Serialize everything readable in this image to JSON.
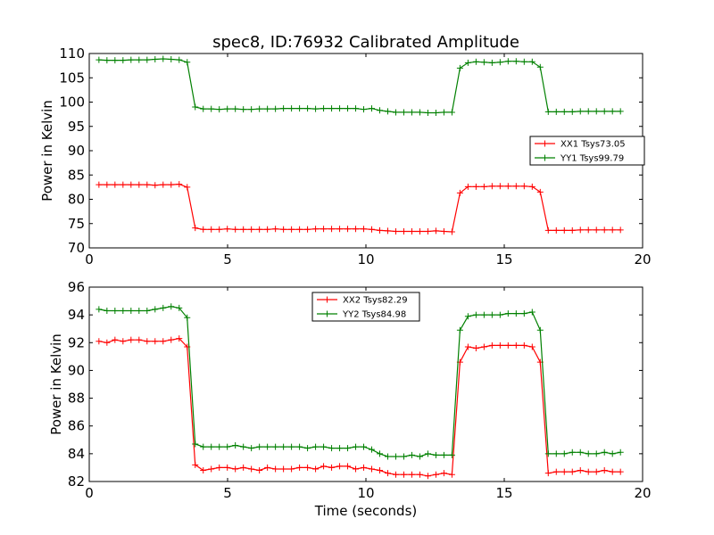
{
  "figure": {
    "title": "spec8, ID:76932 Calibrated Amplitude"
  },
  "chart_data": [
    {
      "type": "line",
      "title": "spec8, ID:76932 Calibrated Amplitude",
      "xlabel": "",
      "ylabel": "Power in Kelvin",
      "xlim": [
        0,
        20
      ],
      "ylim": [
        70,
        110
      ],
      "xticks": [
        0,
        5,
        10,
        15,
        20
      ],
      "yticks": [
        70,
        75,
        80,
        85,
        90,
        95,
        100,
        105,
        110
      ],
      "grid": false,
      "legend_position": "center-right",
      "x": [
        0.35,
        0.64,
        0.93,
        1.22,
        1.51,
        1.8,
        2.09,
        2.38,
        2.67,
        2.96,
        3.25,
        3.54,
        3.83,
        4.12,
        4.41,
        4.7,
        4.99,
        5.28,
        5.57,
        5.86,
        6.15,
        6.44,
        6.73,
        7.02,
        7.31,
        7.6,
        7.89,
        8.18,
        8.47,
        8.76,
        9.05,
        9.34,
        9.63,
        9.92,
        10.21,
        10.5,
        10.79,
        11.08,
        11.37,
        11.66,
        11.95,
        12.24,
        12.53,
        12.82,
        13.11,
        13.4,
        13.69,
        13.98,
        14.27,
        14.56,
        14.85,
        15.14,
        15.43,
        15.72,
        16.01,
        16.3,
        16.59,
        16.88,
        17.17,
        17.46,
        17.75,
        18.04,
        18.33,
        18.62,
        18.91,
        19.2
      ],
      "series": [
        {
          "name": "XX1 Tsys73.05",
          "color": "#ff0000",
          "values": [
            83.0,
            83.0,
            83.0,
            83.0,
            83.0,
            83.0,
            83.0,
            82.9,
            83.0,
            83.0,
            83.1,
            82.5,
            74.1,
            73.8,
            73.8,
            73.8,
            73.9,
            73.8,
            73.8,
            73.8,
            73.8,
            73.8,
            73.9,
            73.8,
            73.8,
            73.8,
            73.8,
            73.9,
            73.9,
            73.9,
            73.9,
            73.9,
            73.9,
            73.9,
            73.8,
            73.6,
            73.5,
            73.4,
            73.4,
            73.4,
            73.4,
            73.4,
            73.5,
            73.4,
            73.3,
            81.3,
            82.6,
            82.6,
            82.6,
            82.7,
            82.7,
            82.7,
            82.7,
            82.7,
            82.6,
            81.5,
            73.6,
            73.6,
            73.6,
            73.6,
            73.7,
            73.7,
            73.7,
            73.7,
            73.7,
            73.7
          ]
        },
        {
          "name": "YY1 Tsys99.79",
          "color": "#008000",
          "values": [
            108.7,
            108.6,
            108.6,
            108.6,
            108.7,
            108.7,
            108.7,
            108.8,
            108.9,
            108.8,
            108.7,
            108.2,
            99.0,
            98.6,
            98.6,
            98.5,
            98.6,
            98.6,
            98.5,
            98.5,
            98.6,
            98.6,
            98.6,
            98.7,
            98.7,
            98.7,
            98.7,
            98.6,
            98.7,
            98.7,
            98.7,
            98.7,
            98.7,
            98.5,
            98.7,
            98.3,
            98.1,
            97.9,
            97.9,
            97.9,
            97.9,
            97.8,
            97.8,
            97.9,
            97.9,
            107.0,
            108.1,
            108.3,
            108.2,
            108.1,
            108.2,
            108.4,
            108.4,
            108.3,
            108.3,
            107.2,
            98.0,
            98.0,
            98.0,
            98.0,
            98.1,
            98.1,
            98.1,
            98.1,
            98.1,
            98.1
          ]
        }
      ]
    },
    {
      "type": "line",
      "title": "",
      "xlabel": "Time (seconds)",
      "ylabel": "Power in Kelvin",
      "xlim": [
        0,
        20
      ],
      "ylim": [
        82,
        96
      ],
      "xticks": [
        0,
        5,
        10,
        15,
        20
      ],
      "yticks": [
        82,
        84,
        86,
        88,
        90,
        92,
        94,
        96
      ],
      "grid": false,
      "legend_position": "top-center",
      "x": [
        0.35,
        0.64,
        0.93,
        1.22,
        1.51,
        1.8,
        2.09,
        2.38,
        2.67,
        2.96,
        3.25,
        3.54,
        3.83,
        4.12,
        4.41,
        4.7,
        4.99,
        5.28,
        5.57,
        5.86,
        6.15,
        6.44,
        6.73,
        7.02,
        7.31,
        7.6,
        7.89,
        8.18,
        8.47,
        8.76,
        9.05,
        9.34,
        9.63,
        9.92,
        10.21,
        10.5,
        10.79,
        11.08,
        11.37,
        11.66,
        11.95,
        12.24,
        12.53,
        12.82,
        13.11,
        13.4,
        13.69,
        13.98,
        14.27,
        14.56,
        14.85,
        15.14,
        15.43,
        15.72,
        16.01,
        16.3,
        16.59,
        16.88,
        17.17,
        17.46,
        17.75,
        18.04,
        18.33,
        18.62,
        18.91,
        19.2
      ],
      "series": [
        {
          "name": "XX2 Tsys82.29",
          "color": "#ff0000",
          "values": [
            92.1,
            92.0,
            92.2,
            92.1,
            92.2,
            92.2,
            92.1,
            92.1,
            92.1,
            92.2,
            92.3,
            91.7,
            83.2,
            82.8,
            82.9,
            83.0,
            83.0,
            82.9,
            83.0,
            82.9,
            82.8,
            83.0,
            82.9,
            82.9,
            82.9,
            83.0,
            83.0,
            82.9,
            83.1,
            83.0,
            83.1,
            83.1,
            82.9,
            83.0,
            82.9,
            82.8,
            82.6,
            82.5,
            82.5,
            82.5,
            82.5,
            82.4,
            82.5,
            82.6,
            82.5,
            90.6,
            91.7,
            91.6,
            91.7,
            91.8,
            91.8,
            91.8,
            91.8,
            91.8,
            91.7,
            90.6,
            82.6,
            82.7,
            82.7,
            82.7,
            82.8,
            82.7,
            82.7,
            82.8,
            82.7,
            82.7
          ]
        },
        {
          "name": "YY2 Tsys84.98",
          "color": "#008000",
          "values": [
            94.4,
            94.3,
            94.3,
            94.3,
            94.3,
            94.3,
            94.3,
            94.4,
            94.5,
            94.6,
            94.5,
            93.8,
            84.7,
            84.5,
            84.5,
            84.5,
            84.5,
            84.6,
            84.5,
            84.4,
            84.5,
            84.5,
            84.5,
            84.5,
            84.5,
            84.5,
            84.4,
            84.5,
            84.5,
            84.4,
            84.4,
            84.4,
            84.5,
            84.5,
            84.3,
            84.0,
            83.8,
            83.8,
            83.8,
            83.9,
            83.8,
            84.0,
            83.9,
            83.9,
            83.9,
            92.9,
            93.9,
            94.0,
            94.0,
            94.0,
            94.0,
            94.1,
            94.1,
            94.1,
            94.2,
            92.9,
            84.0,
            84.0,
            84.0,
            84.1,
            84.1,
            84.0,
            84.0,
            84.1,
            84.0,
            84.1
          ]
        }
      ]
    }
  ]
}
